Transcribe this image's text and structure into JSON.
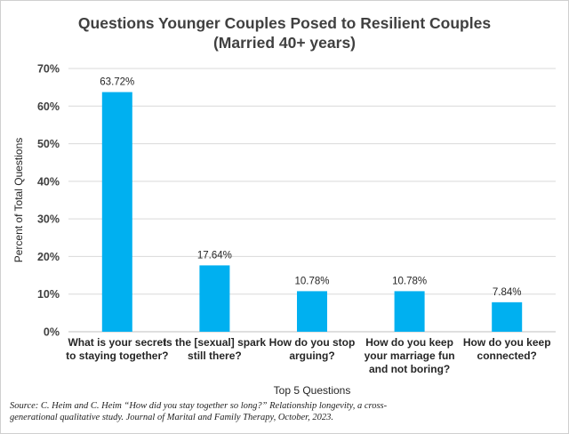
{
  "chart_data": {
    "type": "bar",
    "title_lines": [
      "Questions Younger Couples Posed to Resilient Couples",
      "(Married 40+ years)"
    ],
    "ylabel": "Percent of Total Questions",
    "xlabel": "Top 5 Questions",
    "ylim": [
      0,
      70
    ],
    "yticks": [
      0,
      10,
      20,
      30,
      40,
      50,
      60,
      70
    ],
    "ytick_labels": [
      "0%",
      "10%",
      "20%",
      "30%",
      "40%",
      "50%",
      "60%",
      "70%"
    ],
    "grid": true,
    "categories": [
      [
        "What is your secret",
        "to staying together?"
      ],
      [
        "Is the [sexual] spark",
        "still there?"
      ],
      [
        "How do you stop",
        "arguing?"
      ],
      [
        "How do you keep",
        "your marriage fun",
        "and not boring?"
      ],
      [
        "How do you keep",
        "connected?"
      ]
    ],
    "values": [
      63.72,
      17.64,
      10.78,
      10.78,
      7.84
    ],
    "data_labels": [
      "63.72%",
      "17.64%",
      "10.78%",
      "10.78%",
      "7.84%"
    ],
    "bar_color": "#00B0F0"
  },
  "source_lines": [
    "Source: C. Heim and C. Heim “How did you stay together so long?” Relationship longevity, a cross-",
    "generational qualitative study. Journal of Marital and Family Therapy, October, 2023."
  ]
}
